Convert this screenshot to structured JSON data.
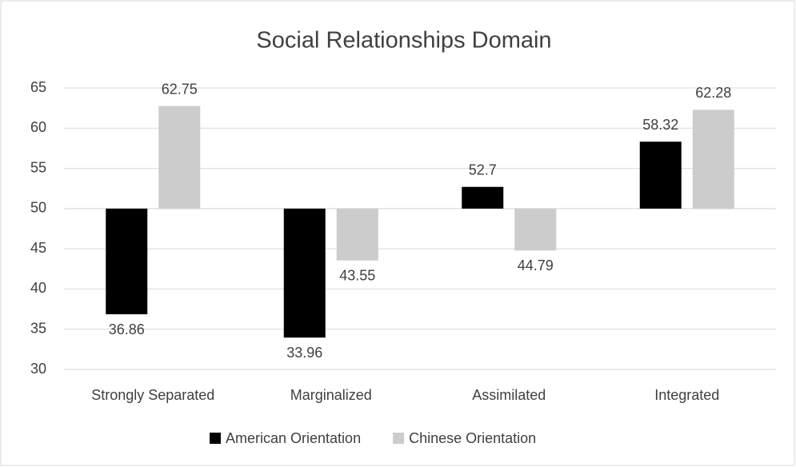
{
  "chart_data": {
    "type": "bar",
    "title": "Social Relationships Domain",
    "categories": [
      "Strongly Separated",
      "Marginalized",
      "Assimilated",
      "Integrated"
    ],
    "series": [
      {
        "name": "American Orientation",
        "color": "#000000",
        "values": [
          36.86,
          33.96,
          52.7,
          58.32
        ]
      },
      {
        "name": "Chinese Orientation",
        "color": "#cccccc",
        "values": [
          62.75,
          43.55,
          44.79,
          62.28
        ]
      }
    ],
    "ylim": [
      30,
      65
    ],
    "yticks": [
      30,
      35,
      40,
      45,
      50,
      55,
      60,
      65
    ],
    "x_axis_crosses": 50,
    "grid": true,
    "legend": "bottom"
  }
}
